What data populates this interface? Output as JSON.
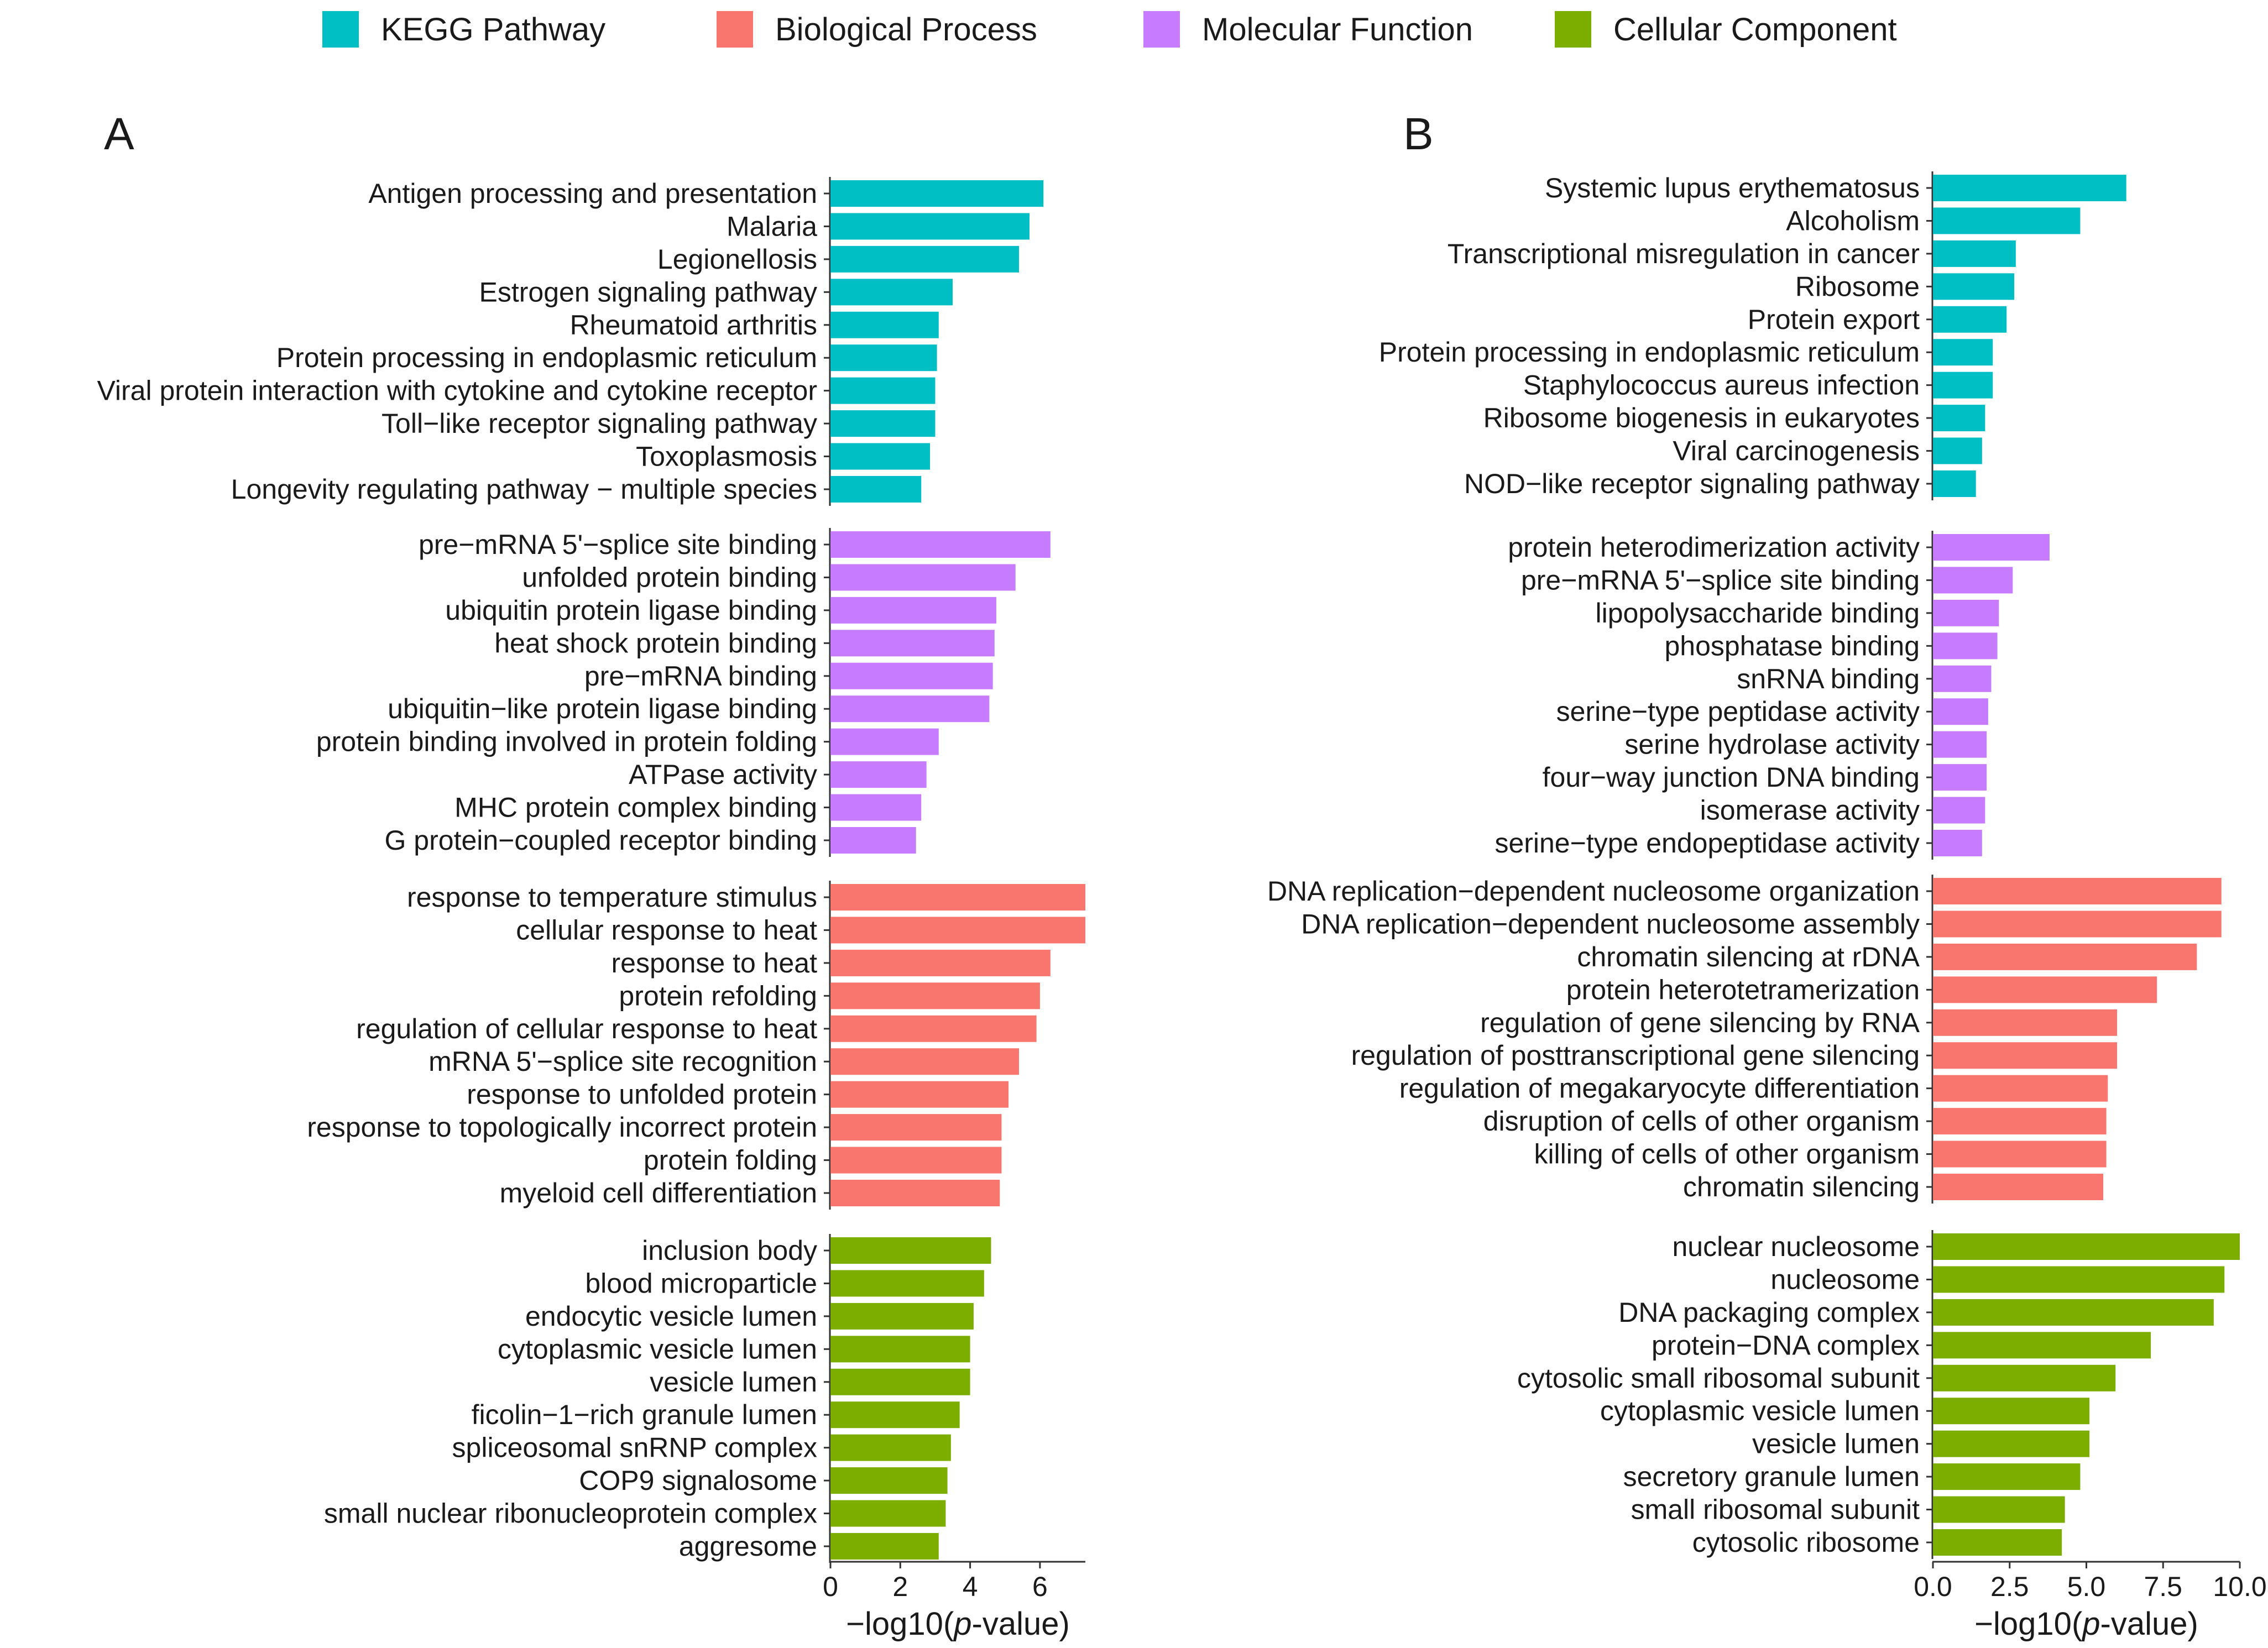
{
  "legend": [
    {
      "label": "KEGG Pathway",
      "color": "#00BFC4"
    },
    {
      "label": "Biological Process",
      "color": "#F8766D"
    },
    {
      "label": "Molecular Function",
      "color": "#C77CFF"
    },
    {
      "label": "Cellular Component",
      "color": "#7CAE00"
    }
  ],
  "chart_data": [
    {
      "type": "bar",
      "orientation": "horizontal",
      "panel_label": "A",
      "xlabel_prefix": "−log10(",
      "xlabel_italic": "p",
      "xlabel_suffix": "-value)",
      "xlim": [
        0,
        7.3
      ],
      "xticks": [
        0,
        2,
        4,
        6
      ],
      "xtick_labels": [
        "0",
        "2",
        "4",
        "6"
      ],
      "groups": [
        {
          "name": "KEGG Pathway",
          "color": "#00BFC4",
          "categories": [
            "Antigen processing and presentation",
            "Malaria",
            "Legionellosis",
            "Estrogen signaling pathway",
            "Rheumatoid arthritis",
            "Protein processing in endoplasmic reticulum",
            "Viral protein interaction with cytokine and cytokine receptor",
            "Toll−like receptor signaling pathway",
            "Toxoplasmosis",
            "Longevity regulating pathway − multiple species"
          ],
          "values": [
            6.1,
            5.7,
            5.4,
            3.5,
            3.1,
            3.05,
            3.0,
            3.0,
            2.85,
            2.6
          ]
        },
        {
          "name": "Molecular Function",
          "color": "#C77CFF",
          "categories": [
            "pre−mRNA 5'−splice site binding",
            "unfolded protein binding",
            "ubiquitin protein ligase binding",
            "heat shock protein binding",
            "pre−mRNA binding",
            "ubiquitin−like protein ligase binding",
            "protein binding involved in protein folding",
            "ATPase activity",
            "MHC protein complex binding",
            "G protein−coupled receptor binding"
          ],
          "values": [
            6.3,
            5.3,
            4.75,
            4.7,
            4.65,
            4.55,
            3.1,
            2.75,
            2.6,
            2.45
          ]
        },
        {
          "name": "Biological Process",
          "color": "#F8766D",
          "categories": [
            "response to temperature stimulus",
            "cellular response to heat",
            "response to heat",
            "protein refolding",
            "regulation of cellular response to heat",
            "mRNA 5'−splice site recognition",
            "response to unfolded protein",
            "response to topologically incorrect protein",
            "protein folding",
            "myeloid cell differentiation"
          ],
          "values": [
            7.3,
            7.3,
            6.3,
            6.0,
            5.9,
            5.4,
            5.1,
            4.9,
            4.9,
            4.85
          ]
        },
        {
          "name": "Cellular Component",
          "color": "#7CAE00",
          "categories": [
            "inclusion body",
            "blood microparticle",
            "endocytic vesicle lumen",
            "cytoplasmic vesicle lumen",
            "vesicle lumen",
            "ficolin−1−rich granule lumen",
            "spliceosomal snRNP complex",
            "COP9 signalosome",
            "small nuclear ribonucleoprotein complex",
            "aggresome"
          ],
          "values": [
            4.6,
            4.4,
            4.1,
            4.0,
            4.0,
            3.7,
            3.45,
            3.35,
            3.3,
            3.1
          ]
        }
      ]
    },
    {
      "type": "bar",
      "orientation": "horizontal",
      "panel_label": "B",
      "xlabel_prefix": "−log10(",
      "xlabel_italic": "p",
      "xlabel_suffix": "-value)",
      "xlim": [
        0,
        10.0
      ],
      "xticks": [
        0,
        2.5,
        5,
        7.5,
        10
      ],
      "xtick_labels": [
        "0.0",
        "2.5",
        "5.0",
        "7.5",
        "10.0"
      ],
      "groups": [
        {
          "name": "KEGG Pathway",
          "color": "#00BFC4",
          "categories": [
            "Systemic lupus erythematosus",
            "Alcoholism",
            "Transcriptional misregulation in cancer",
            "Ribosome",
            "Protein export",
            "Protein processing in endoplasmic reticulum",
            "Staphylococcus aureus infection",
            "Ribosome biogenesis in eukaryotes",
            "Viral carcinogenesis",
            "NOD−like receptor signaling pathway"
          ],
          "values": [
            6.3,
            4.8,
            2.7,
            2.65,
            2.4,
            1.95,
            1.95,
            1.7,
            1.6,
            1.4
          ]
        },
        {
          "name": "Molecular Function",
          "color": "#C77CFF",
          "categories": [
            "protein heterodimerization activity",
            "pre−mRNA 5'−splice site binding",
            "lipopolysaccharide binding",
            "phosphatase binding",
            "snRNA binding",
            "serine−type peptidase activity",
            "serine hydrolase activity",
            "four−way junction DNA binding",
            "isomerase activity",
            "serine−type endopeptidase activity"
          ],
          "values": [
            3.8,
            2.6,
            2.15,
            2.1,
            1.9,
            1.8,
            1.75,
            1.75,
            1.7,
            1.6
          ]
        },
        {
          "name": "Biological Process",
          "color": "#F8766D",
          "categories": [
            "DNA replication−dependent nucleosome organization",
            "DNA replication−dependent nucleosome assembly",
            "chromatin silencing at rDNA",
            "protein heterotetramerization",
            "regulation of gene silencing by RNA",
            "regulation of posttranscriptional gene silencing",
            "regulation of megakaryocyte differentiation",
            "disruption of cells of other organism",
            "killing of cells of other organism",
            "chromatin silencing"
          ],
          "values": [
            9.4,
            9.4,
            8.6,
            7.3,
            6.0,
            6.0,
            5.7,
            5.65,
            5.65,
            5.55
          ]
        },
        {
          "name": "Cellular Component",
          "color": "#7CAE00",
          "categories": [
            "nuclear nucleosome",
            "nucleosome",
            "DNA packaging complex",
            "protein−DNA complex",
            "cytosolic small ribosomal subunit",
            "cytoplasmic vesicle lumen",
            "vesicle lumen",
            "secretory granule lumen",
            "small ribosomal subunit",
            "cytosolic ribosome"
          ],
          "values": [
            10.0,
            9.5,
            9.15,
            7.1,
            5.95,
            5.1,
            5.1,
            4.8,
            4.3,
            4.2
          ]
        }
      ]
    }
  ]
}
